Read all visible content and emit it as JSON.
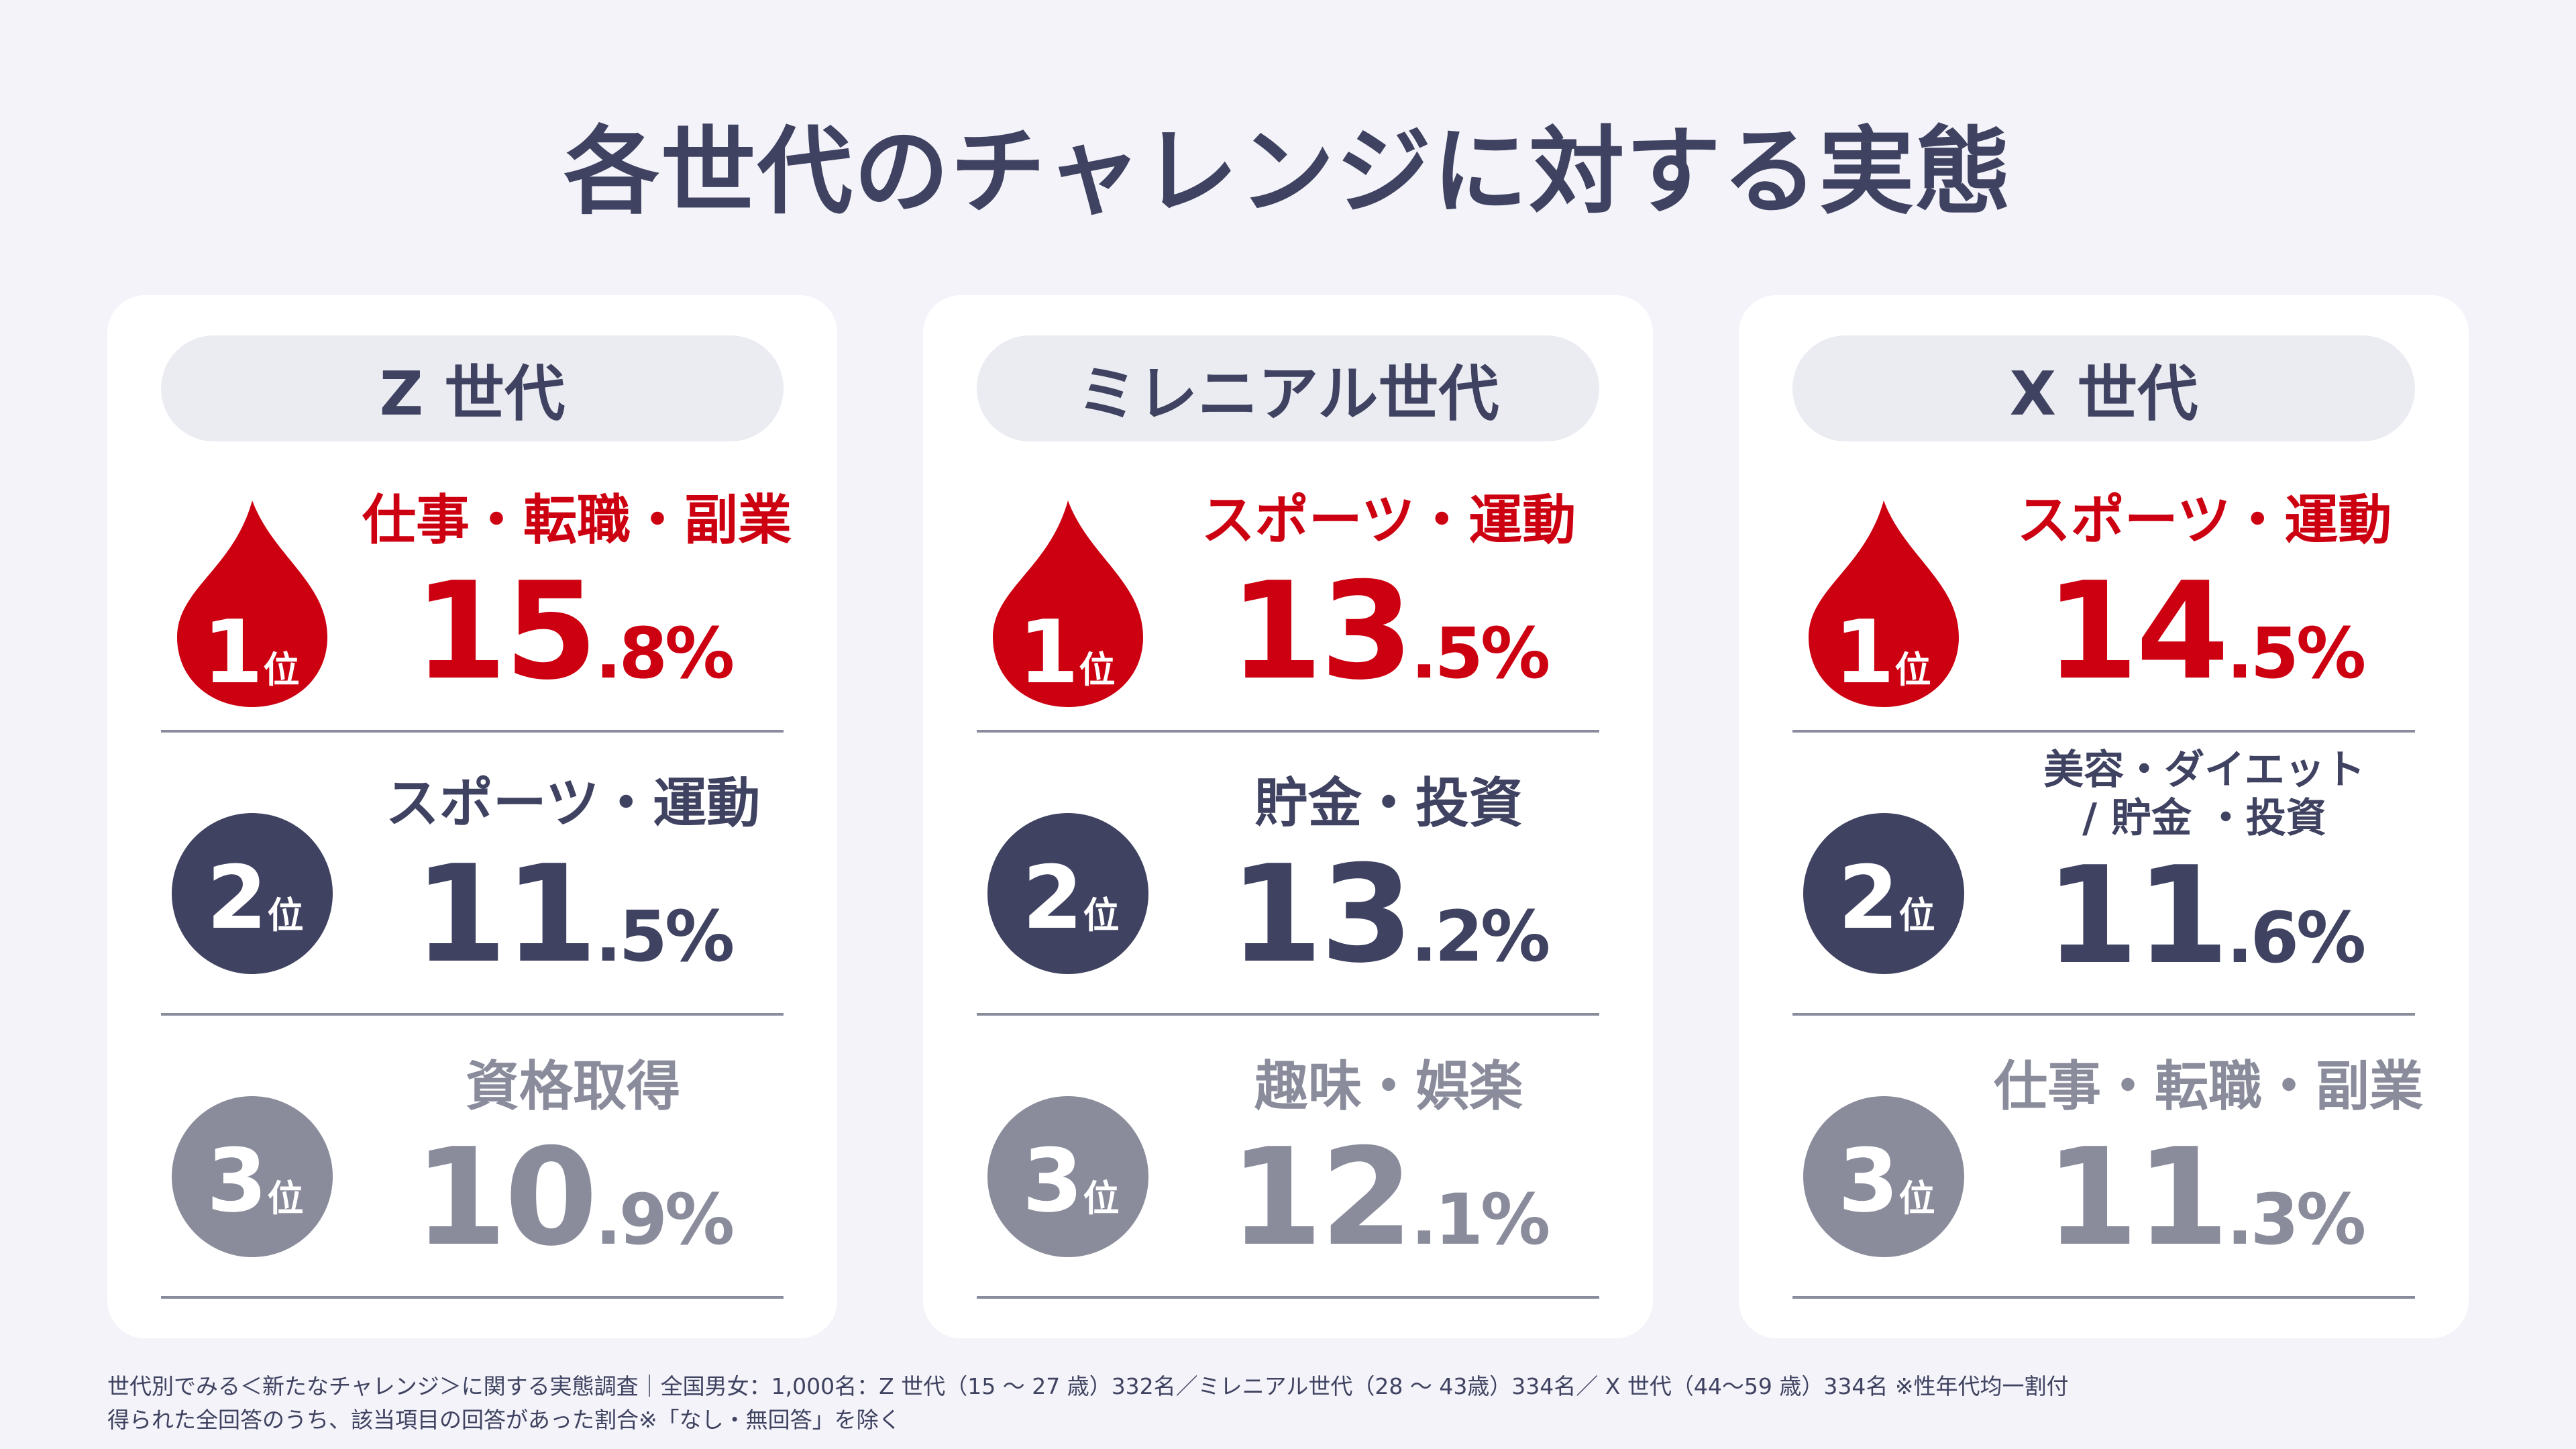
{
  "title": "各世代のチャレンジに対する実態",
  "colors": {
    "rank1": "#cc0010",
    "rank2": "#3f4260",
    "rank3": "#8a8c9c",
    "background": "#f3f3f9"
  },
  "generations": [
    {
      "name": "Z 世代",
      "ranks": [
        {
          "num": "1",
          "suffix": "位",
          "icon": "flame-icon",
          "label": "仕事・転職・副業",
          "pct_int": "15",
          "pct_dec": ".8%"
        },
        {
          "num": "2",
          "suffix": "位",
          "icon": "circle-icon",
          "label": "スポーツ・運動",
          "pct_int": "11",
          "pct_dec": ".5%"
        },
        {
          "num": "3",
          "suffix": "位",
          "icon": "circle-icon",
          "label": "資格取得",
          "pct_int": "10",
          "pct_dec": ".9%"
        }
      ]
    },
    {
      "name": "ミレニアル世代",
      "ranks": [
        {
          "num": "1",
          "suffix": "位",
          "icon": "flame-icon",
          "label": "スポーツ・運動",
          "pct_int": "13",
          "pct_dec": ".5%"
        },
        {
          "num": "2",
          "suffix": "位",
          "icon": "circle-icon",
          "label": "貯金・投資",
          "pct_int": "13",
          "pct_dec": ".2%"
        },
        {
          "num": "3",
          "suffix": "位",
          "icon": "circle-icon",
          "label": "趣味・娯楽",
          "pct_int": "12",
          "pct_dec": ".1%"
        }
      ]
    },
    {
      "name": "X 世代",
      "ranks": [
        {
          "num": "1",
          "suffix": "位",
          "icon": "flame-icon",
          "label": "スポーツ・運動",
          "pct_int": "14",
          "pct_dec": ".5%"
        },
        {
          "num": "2",
          "suffix": "位",
          "icon": "circle-icon",
          "label_line1": "美容・ダイエット",
          "label_line2": "/ 貯金 ・投資",
          "pct_int": "11",
          "pct_dec": ".6%"
        },
        {
          "num": "3",
          "suffix": "位",
          "icon": "circle-icon",
          "label": "仕事・転職・副業",
          "pct_int": "11",
          "pct_dec": ".3%"
        }
      ]
    }
  ],
  "footnote": {
    "line1": "世代別でみる＜新たなチャレンジ＞に関する実態調査｜全国男女：1,000名：Z 世代（15 ～ 27 歳）332名／ミレニアル世代（28 ～ 43歳）334名／ X 世代（44～59 歳）334名 ※性年代均一割付",
    "line2": "得られた全回答のうち、該当項目の回答があった割合※「なし・無回答」を除く"
  }
}
